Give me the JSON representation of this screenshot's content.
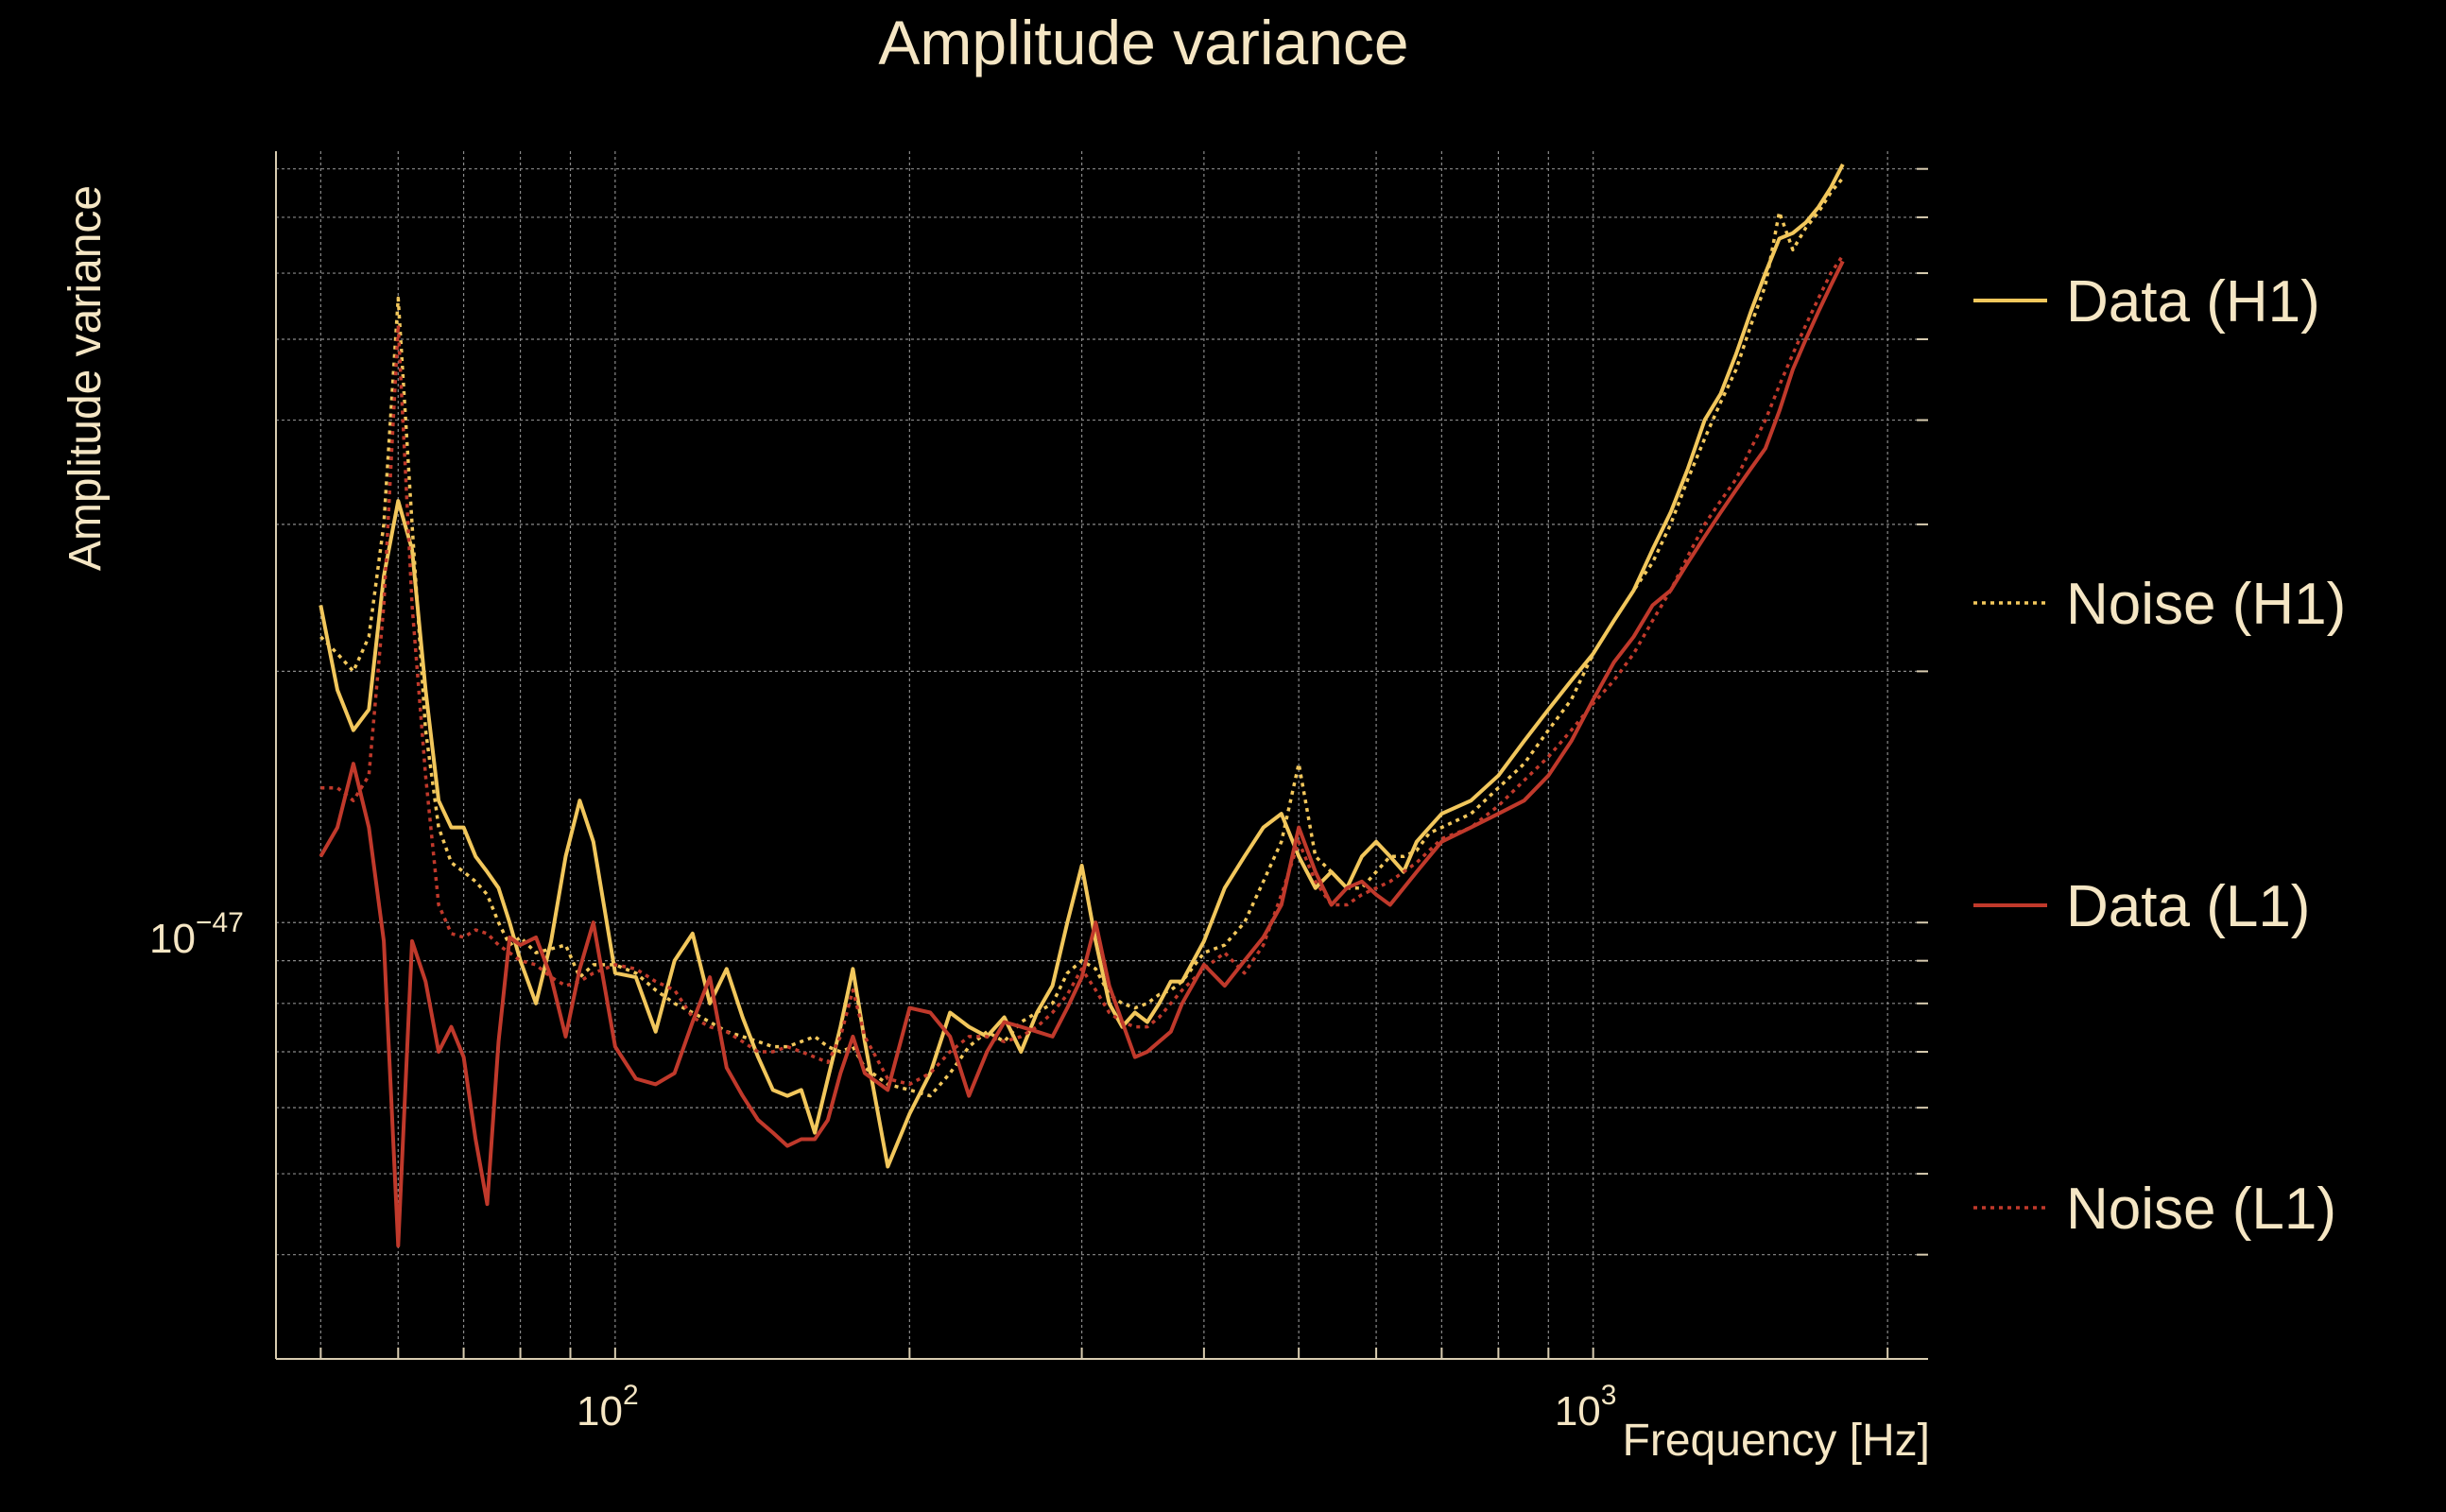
{
  "colors": {
    "background": "#000000",
    "text": "#f5e6c4",
    "axis": "#d8ccb0",
    "grid": "#8a8a8a",
    "data_h1": "#f2c75c",
    "noise_h1": "#f2c75c",
    "data_l1": "#c0392b",
    "noise_l1": "#c0392b"
  },
  "chart_data": {
    "type": "line",
    "title": "Amplitude variance",
    "xlabel": "Frequency [Hz]",
    "ylabel": "Amplitude variance",
    "x_scale": "log",
    "y_scale": "log",
    "xlim": [
      45,
      2200
    ],
    "ylim": [
      3e-48,
      8.4e-47
    ],
    "x_ticks": [
      {
        "value": 100,
        "label": "10",
        "sup": "2"
      },
      {
        "value": 1000,
        "label": "10",
        "sup": "3"
      }
    ],
    "y_ticks": [
      {
        "value": 1e-47,
        "label": "10",
        "sup": "−47"
      }
    ],
    "grid": true,
    "legend_position": "right",
    "series": [
      {
        "name": "Data (H1)",
        "style": "solid",
        "color": "#f2c75c",
        "x": [
          50,
          52,
          54,
          56,
          58,
          60,
          62,
          64,
          66,
          68,
          70,
          72,
          74,
          76,
          78,
          80,
          83,
          86,
          89,
          92,
          95,
          100,
          105,
          110,
          115,
          120,
          125,
          130,
          135,
          140,
          145,
          150,
          155,
          160,
          165,
          170,
          175,
          180,
          190,
          200,
          210,
          220,
          230,
          240,
          250,
          260,
          270,
          280,
          290,
          300,
          310,
          320,
          330,
          340,
          350,
          360,
          370,
          380,
          400,
          420,
          440,
          460,
          480,
          500,
          520,
          540,
          560,
          580,
          600,
          620,
          640,
          660,
          680,
          700,
          750,
          800,
          850,
          900,
          950,
          1000,
          1050,
          1100,
          1150,
          1200,
          1250,
          1300,
          1350,
          1400,
          1450,
          1500,
          1550,
          1600,
          1650,
          1700,
          1750,
          1800
        ],
        "y": [
          2.4e-47,
          1.9e-47,
          1.7e-47,
          1.8e-47,
          2.6e-47,
          3.2e-47,
          2.8e-47,
          1.9e-47,
          1.4e-47,
          1.3e-47,
          1.3e-47,
          1.2e-47,
          1.15e-47,
          1.1e-47,
          1e-47,
          9e-48,
          8e-48,
          9.5e-48,
          1.2e-47,
          1.4e-47,
          1.25e-47,
          8.7e-48,
          8.6e-48,
          7.4e-48,
          9e-48,
          9.7e-48,
          8e-48,
          8.8e-48,
          7.7e-48,
          6.9e-48,
          6.3e-48,
          6.2e-48,
          6.3e-48,
          5.6e-48,
          6.5e-48,
          7.5e-48,
          8.8e-48,
          7.2e-48,
          5.1e-48,
          5.9e-48,
          6.6e-48,
          7.8e-48,
          7.5e-48,
          7.3e-48,
          7.7e-48,
          7e-48,
          7.8e-48,
          8.4e-48,
          1e-47,
          1.17e-47,
          9.5e-48,
          8e-48,
          7.5e-48,
          7.8e-48,
          7.6e-48,
          8e-48,
          8.5e-48,
          8.5e-48,
          9.5e-48,
          1.1e-47,
          1.2e-47,
          1.3e-47,
          1.35e-47,
          1.2e-47,
          1.1e-47,
          1.15e-47,
          1.1e-47,
          1.2e-47,
          1.25e-47,
          1.2e-47,
          1.15e-47,
          1.25e-47,
          1.3e-47,
          1.35e-47,
          1.4e-47,
          1.5e-47,
          1.65e-47,
          1.8e-47,
          1.95e-47,
          2.1e-47,
          2.3e-47,
          2.5e-47,
          2.8e-47,
          3.1e-47,
          3.5e-47,
          4e-47,
          4.3e-47,
          4.8e-47,
          5.4e-47,
          6e-47,
          6.6e-47,
          6.7e-47,
          6.9e-47,
          7.2e-47,
          7.6e-47,
          8.1e-47
        ]
      },
      {
        "name": "Noise (H1)",
        "style": "dotted",
        "color": "#f2c75c",
        "x": [
          50,
          52,
          54,
          56,
          58,
          60,
          62,
          64,
          66,
          68,
          70,
          72,
          74,
          76,
          78,
          80,
          83,
          86,
          89,
          92,
          95,
          100,
          105,
          110,
          115,
          120,
          125,
          130,
          135,
          140,
          145,
          150,
          155,
          160,
          165,
          170,
          175,
          180,
          190,
          200,
          210,
          220,
          230,
          240,
          250,
          260,
          270,
          280,
          290,
          300,
          310,
          320,
          330,
          340,
          350,
          360,
          370,
          380,
          400,
          420,
          440,
          460,
          480,
          500,
          520,
          540,
          560,
          580,
          600,
          620,
          640,
          660,
          680,
          700,
          750,
          800,
          850,
          900,
          950,
          1000,
          1050,
          1100,
          1150,
          1200,
          1250,
          1300,
          1350,
          1400,
          1450,
          1500,
          1550,
          1600,
          1650,
          1700,
          1750,
          1800
        ],
        "y": [
          2.2e-47,
          2.1e-47,
          2e-47,
          2.2e-47,
          3e-47,
          5.6e-47,
          3e-47,
          1.7e-47,
          1.3e-47,
          1.18e-47,
          1.15e-47,
          1.12e-47,
          1.08e-47,
          1e-47,
          9.4e-48,
          9.6e-48,
          9.2e-48,
          9.3e-48,
          9.4e-48,
          8.6e-48,
          8.9e-48,
          8.9e-48,
          8.7e-48,
          8.3e-48,
          8e-48,
          7.8e-48,
          7.6e-48,
          7.4e-48,
          7.3e-48,
          7.2e-48,
          7.1e-48,
          7.1e-48,
          7.2e-48,
          7.3e-48,
          7.1e-48,
          7e-48,
          7.1e-48,
          6.7e-48,
          6.4e-48,
          6.3e-48,
          6.2e-48,
          6.6e-48,
          7.1e-48,
          7.4e-48,
          7.2e-48,
          7.6e-48,
          7.8e-48,
          8e-48,
          8.7e-48,
          9e-48,
          8.8e-48,
          8.2e-48,
          8e-48,
          7.9e-48,
          8e-48,
          8.2e-48,
          8.3e-48,
          8.5e-48,
          9.2e-48,
          9.4e-48,
          1e-47,
          1.12e-47,
          1.25e-47,
          1.55e-47,
          1.2e-47,
          1.15e-47,
          1.1e-47,
          1.1e-47,
          1.15e-47,
          1.2e-47,
          1.2e-47,
          1.22e-47,
          1.28e-47,
          1.3e-47,
          1.35e-47,
          1.45e-47,
          1.55e-47,
          1.7e-47,
          1.85e-47,
          2.1e-47,
          2.3e-47,
          2.5e-47,
          2.7e-47,
          3e-47,
          3.4e-47,
          3.8e-47,
          4.2e-47,
          4.6e-47,
          5.2e-47,
          5.8e-47,
          7.1e-47,
          6.4e-47,
          6.8e-47,
          7.1e-47,
          7.5e-47,
          7.8e-47
        ]
      },
      {
        "name": "Data (L1)",
        "style": "solid",
        "color": "#c0392b",
        "x": [
          50,
          52,
          54,
          56,
          58,
          60,
          62,
          64,
          66,
          68,
          70,
          72,
          74,
          76,
          78,
          80,
          83,
          86,
          89,
          92,
          95,
          100,
          105,
          110,
          115,
          120,
          125,
          130,
          135,
          140,
          145,
          150,
          155,
          160,
          165,
          170,
          175,
          180,
          190,
          200,
          210,
          220,
          230,
          240,
          250,
          260,
          270,
          280,
          290,
          300,
          310,
          320,
          330,
          340,
          350,
          360,
          370,
          380,
          400,
          420,
          440,
          460,
          480,
          500,
          520,
          540,
          560,
          580,
          600,
          620,
          640,
          660,
          680,
          700,
          750,
          800,
          850,
          900,
          950,
          1000,
          1050,
          1100,
          1150,
          1200,
          1250,
          1300,
          1350,
          1400,
          1450,
          1500,
          1550,
          1600,
          1650,
          1700,
          1750,
          1800
        ],
        "y": [
          1.2e-47,
          1.3e-47,
          1.55e-47,
          1.3e-47,
          9.5e-48,
          4.1e-48,
          9.5e-48,
          8.5e-48,
          7e-48,
          7.5e-48,
          6.9e-48,
          5.5e-48,
          4.6e-48,
          7.2e-48,
          9.6e-48,
          9.4e-48,
          9.6e-48,
          8.6e-48,
          7.3e-48,
          8.8e-48,
          1e-47,
          7.1e-48,
          6.5e-48,
          6.4e-48,
          6.6e-48,
          7.6e-48,
          8.6e-48,
          6.7e-48,
          6.2e-48,
          5.8e-48,
          5.6e-48,
          5.4e-48,
          5.5e-48,
          5.5e-48,
          5.8e-48,
          6.6e-48,
          7.3e-48,
          6.6e-48,
          6.3e-48,
          7.9e-48,
          7.8e-48,
          7.3e-48,
          6.2e-48,
          7e-48,
          7.6e-48,
          7.5e-48,
          7.4e-48,
          7.3e-48,
          7.9e-48,
          8.6e-48,
          1e-47,
          8.4e-48,
          7.6e-48,
          6.9e-48,
          7e-48,
          7.2e-48,
          7.4e-48,
          8e-48,
          8.9e-48,
          8.4e-48,
          9e-48,
          9.6e-48,
          1.05e-47,
          1.3e-47,
          1.15e-47,
          1.05e-47,
          1.1e-47,
          1.12e-47,
          1.08e-47,
          1.05e-47,
          1.1e-47,
          1.15e-47,
          1.2e-47,
          1.25e-47,
          1.3e-47,
          1.35e-47,
          1.4e-47,
          1.5e-47,
          1.65e-47,
          1.85e-47,
          2.05e-47,
          2.2e-47,
          2.4e-47,
          2.5e-47,
          2.7e-47,
          2.9e-47,
          3.1e-47,
          3.3e-47,
          3.5e-47,
          3.7e-47,
          4.1e-47,
          4.6e-47,
          5e-47,
          5.4e-47,
          5.8e-47,
          6.2e-47
        ]
      },
      {
        "name": "Noise (L1)",
        "style": "dotted",
        "color": "#c0392b",
        "x": [
          50,
          52,
          54,
          56,
          58,
          60,
          62,
          64,
          66,
          68,
          70,
          72,
          74,
          76,
          78,
          80,
          83,
          86,
          89,
          92,
          95,
          100,
          105,
          110,
          115,
          120,
          125,
          130,
          135,
          140,
          145,
          150,
          155,
          160,
          165,
          170,
          175,
          180,
          190,
          200,
          210,
          220,
          230,
          240,
          250,
          260,
          270,
          280,
          290,
          300,
          310,
          320,
          330,
          340,
          350,
          360,
          370,
          380,
          400,
          420,
          440,
          460,
          480,
          500,
          520,
          540,
          560,
          580,
          600,
          620,
          640,
          660,
          680,
          700,
          750,
          800,
          850,
          900,
          950,
          1000,
          1050,
          1100,
          1150,
          1200,
          1250,
          1300,
          1350,
          1400,
          1450,
          1500,
          1550,
          1600,
          1650,
          1700,
          1750,
          1800
        ],
        "y": [
          1.45e-47,
          1.45e-47,
          1.4e-47,
          1.5e-47,
          2.4e-47,
          5.2e-47,
          2.4e-47,
          1.5e-47,
          1.05e-47,
          9.7e-48,
          9.6e-48,
          9.8e-48,
          9.7e-48,
          9.4e-48,
          9.2e-48,
          9e-48,
          8.9e-48,
          8.6e-48,
          8.4e-48,
          8.5e-48,
          8.7e-48,
          8.9e-48,
          8.8e-48,
          8.5e-48,
          8.3e-48,
          7.7e-48,
          7.5e-48,
          7.4e-48,
          7.2e-48,
          7e-48,
          7e-48,
          7.1e-48,
          7e-48,
          6.9e-48,
          6.8e-48,
          7.3e-48,
          8.3e-48,
          7.3e-48,
          6.5e-48,
          6.4e-48,
          6.6e-48,
          7e-48,
          7.3e-48,
          7.3e-48,
          7.2e-48,
          7.3e-48,
          7.5e-48,
          7.8e-48,
          8.2e-48,
          8.8e-48,
          8.3e-48,
          7.8e-48,
          7.6e-48,
          7.5e-48,
          7.5e-48,
          7.7e-48,
          8e-48,
          8.3e-48,
          8.8e-48,
          9.2e-48,
          8.7e-48,
          9.4e-48,
          1.08e-47,
          1.25e-47,
          1.12e-47,
          1.05e-47,
          1.05e-47,
          1.08e-47,
          1.1e-47,
          1.12e-47,
          1.15e-47,
          1.18e-47,
          1.22e-47,
          1.26e-47,
          1.3e-47,
          1.38e-47,
          1.48e-47,
          1.58e-47,
          1.7e-47,
          1.83e-47,
          1.95e-47,
          2.1e-47,
          2.3e-47,
          2.5e-47,
          2.75e-47,
          3e-47,
          3.2e-47,
          3.4e-47,
          3.7e-47,
          4e-47,
          4.4e-47,
          4.8e-47,
          5.2e-47,
          5.6e-47,
          6e-47,
          6.3e-47
        ]
      }
    ]
  }
}
